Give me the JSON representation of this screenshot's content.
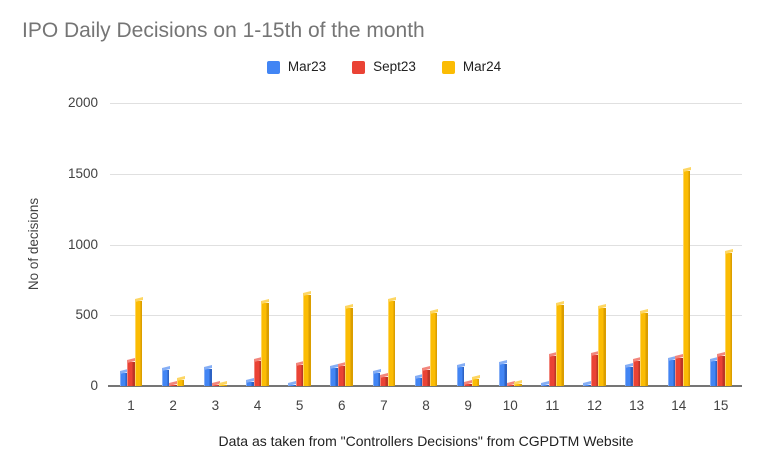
{
  "chart_data": {
    "type": "bar",
    "title": "IPO Daily Decisions on 1-15th of the month",
    "ylabel": "No of decisions",
    "xlabel": "Data as taken from \"Controllers Decisions\" from CGPDTM Website",
    "categories": [
      "1",
      "2",
      "3",
      "4",
      "5",
      "6",
      "7",
      "8",
      "9",
      "10",
      "11",
      "12",
      "13",
      "14",
      "15"
    ],
    "series": [
      {
        "name": "Mar23",
        "color": "#4285f4",
        "color_dark": "#2c62c4",
        "color_light": "#85aef5",
        "values": [
          90,
          110,
          120,
          30,
          8,
          125,
          90,
          60,
          135,
          155,
          8,
          8,
          135,
          185,
          175
        ]
      },
      {
        "name": "Sept23",
        "color": "#ea4335",
        "color_dark": "#bc3526",
        "color_light": "#f2867c",
        "values": [
          170,
          10,
          8,
          180,
          145,
          140,
          65,
          115,
          12,
          10,
          215,
          220,
          175,
          195,
          210
        ]
      },
      {
        "name": "Mar24",
        "color": "#fbbc04",
        "color_dark": "#db9e00",
        "color_light": "#fdd663",
        "values": [
          600,
          40,
          5,
          590,
          645,
          550,
          600,
          515,
          48,
          15,
          570,
          550,
          515,
          1520,
          940
        ]
      }
    ],
    "ylim": [
      0,
      2000
    ],
    "yticks": [
      0,
      500,
      1000,
      1500,
      2000
    ],
    "grid": true,
    "legend_position": "top-center"
  },
  "styles": {
    "background": "#ffffff",
    "title_color": "#757575",
    "axis_text_color": "#424242",
    "caption_color": "#212121",
    "gridline_color": "#e0e0e0",
    "baseline_color": "#757575"
  }
}
